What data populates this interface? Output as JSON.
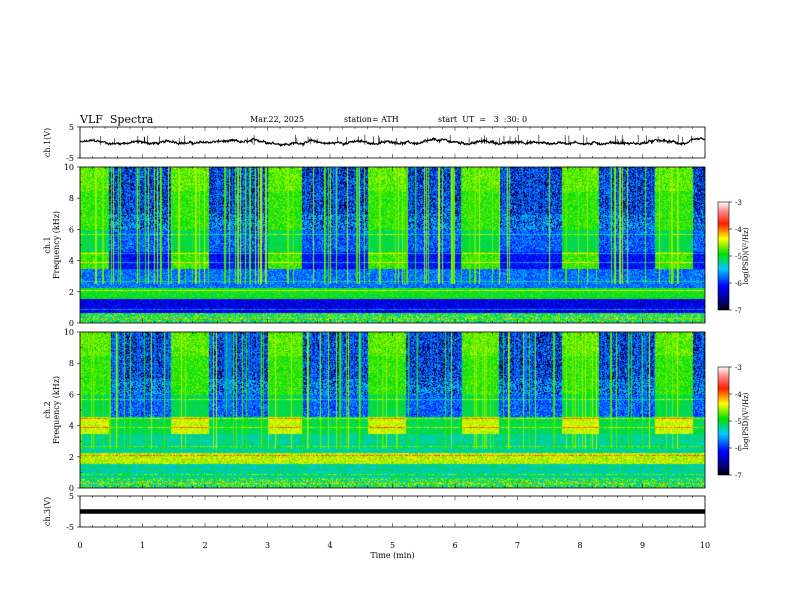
{
  "header": {
    "title": "VLF  Spectra",
    "date": "Mar.22, 2025",
    "station": "station= ATH",
    "start": "start  UT  =   3  :30: 0"
  },
  "chart_data": [
    {
      "type": "line",
      "panel": "ch1-waveform",
      "ylabel": "ch.1(V)",
      "ylim": [
        -5,
        5
      ],
      "yticks": [
        "5",
        "-5"
      ],
      "xlim": [
        0,
        10
      ],
      "trace_mean": 0,
      "trace_std": 0.35
    },
    {
      "type": "heatmap",
      "panel": "ch1-spectrogram",
      "ylabel": "ch.1\nFrequency (kHz)",
      "ylim": [
        0,
        10
      ],
      "yticks": [
        "0",
        "2",
        "4",
        "6",
        "8",
        "10"
      ],
      "xlim": [
        0,
        10
      ],
      "colorbar": {
        "label": "log(PSD)(V²/Hz)",
        "range": [
          -7,
          -3
        ],
        "ticks": [
          "-3",
          "-4",
          "-5",
          "-6",
          "-7"
        ]
      },
      "bright_segments_min": [
        [
          0,
          0.45
        ],
        [
          1.45,
          2.05
        ],
        [
          3.0,
          3.55
        ],
        [
          4.6,
          5.2
        ],
        [
          6.1,
          6.7
        ],
        [
          7.7,
          8.3
        ],
        [
          9.2,
          9.8
        ]
      ]
    },
    {
      "type": "heatmap",
      "panel": "ch2-spectrogram",
      "ylabel": "ch.2\nFrequency (kHz)",
      "ylim": [
        0,
        10
      ],
      "yticks": [
        "0",
        "2",
        "4",
        "6",
        "8",
        "10"
      ],
      "xlim": [
        0,
        10
      ],
      "colorbar": {
        "label": "log(PSD)(V²/Hz)",
        "range": [
          -7,
          -3
        ],
        "ticks": [
          "-3",
          "-4",
          "-5",
          "-6",
          "-7"
        ]
      },
      "bright_segments_min": [
        [
          0,
          0.45
        ],
        [
          1.45,
          2.05
        ],
        [
          3.0,
          3.55
        ],
        [
          4.6,
          5.2
        ],
        [
          6.1,
          6.7
        ],
        [
          7.7,
          8.3
        ],
        [
          9.2,
          9.8
        ]
      ]
    },
    {
      "type": "line",
      "panel": "ch3-waveform",
      "ylabel": "ch.3(V)",
      "ylim": [
        -5,
        5
      ],
      "yticks": [
        "5",
        "-5"
      ],
      "xlim": [
        0,
        10
      ],
      "trace_mean": 0,
      "xlabel": "Time  (min)",
      "xticks": [
        "0",
        "1",
        "2",
        "3",
        "4",
        "5",
        "6",
        "7",
        "8",
        "9",
        "10"
      ]
    }
  ]
}
